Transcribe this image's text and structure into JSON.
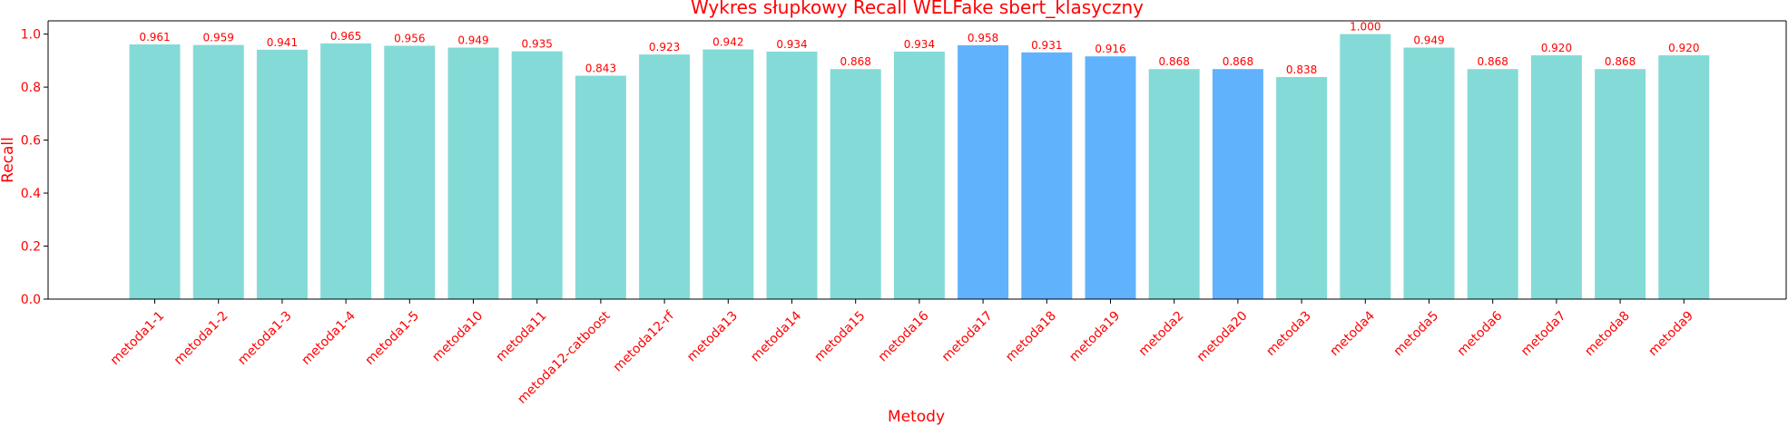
{
  "chart_data": {
    "type": "bar",
    "title": "Wykres słupkowy Recall WELFake sbert_klasyczny",
    "xlabel": "Metody",
    "ylabel": "Recall",
    "ylim": [
      0,
      1.05
    ],
    "yticks": [
      "0.0",
      "0.2",
      "0.4",
      "0.6",
      "0.8",
      "1.0"
    ],
    "grid": false,
    "categories": [
      "metoda1-1",
      "metoda1-2",
      "metoda1-3",
      "metoda1-4",
      "metoda1-5",
      "metoda10",
      "metoda11",
      "metoda12-catboost",
      "metoda12-rf",
      "metoda13",
      "metoda14",
      "metoda15",
      "metoda16",
      "metoda17",
      "metoda18",
      "metoda19",
      "metoda2",
      "metoda20",
      "metoda3",
      "metoda4",
      "metoda5",
      "metoda6",
      "metoda7",
      "metoda8",
      "metoda9"
    ],
    "values": [
      0.961,
      0.959,
      0.941,
      0.965,
      0.956,
      0.949,
      0.935,
      0.843,
      0.923,
      0.942,
      0.934,
      0.868,
      0.934,
      0.958,
      0.931,
      0.916,
      0.868,
      0.868,
      0.838,
      1.0,
      0.949,
      0.868,
      0.92,
      0.868,
      0.92
    ],
    "value_labels": [
      "0.961",
      "0.959",
      "0.941",
      "0.965",
      "0.956",
      "0.949",
      "0.935",
      "0.843",
      "0.923",
      "0.942",
      "0.934",
      "0.868",
      "0.934",
      "0.958",
      "0.931",
      "0.916",
      "0.868",
      "0.868",
      "0.838",
      "1.000",
      "0.949",
      "0.868",
      "0.920",
      "0.868",
      "0.920"
    ],
    "colors": {
      "default_bar": "#84dad6",
      "highlight_bar": "#61b2fc",
      "text": "#ff0000",
      "axis": "#000000"
    },
    "highlighted": [
      "metoda17",
      "metoda18",
      "metoda19",
      "metoda20"
    ]
  }
}
